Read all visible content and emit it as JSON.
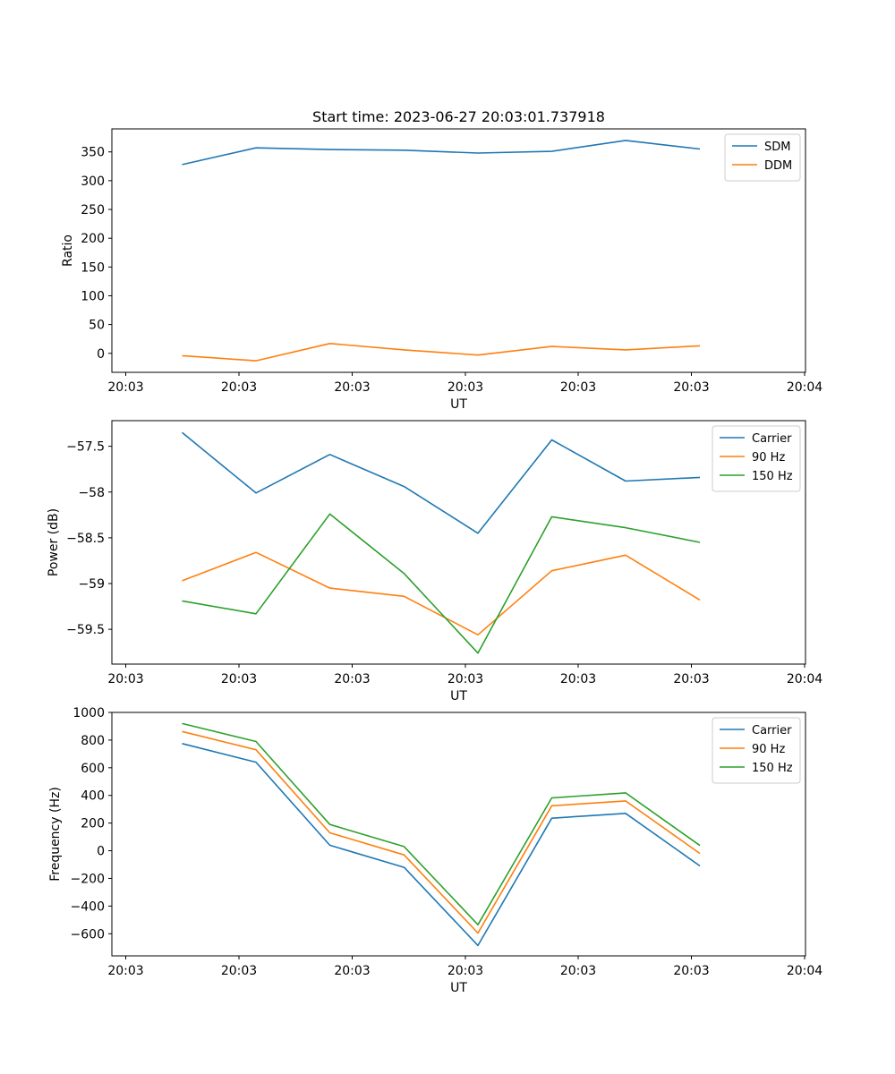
{
  "chart_data": [
    {
      "type": "line",
      "title": "Start time: 2023-06-27 20:03:01.737918",
      "xlabel": "UT",
      "ylabel": "Ratio",
      "x_tick_labels": [
        "20:03",
        "20:03",
        "20:03",
        "20:03",
        "20:03",
        "20:03",
        "20:04"
      ],
      "ylim": [
        -33,
        390
      ],
      "y_ticks": [
        0,
        50,
        100,
        150,
        200,
        250,
        300,
        350
      ],
      "legend": "top-right",
      "grid": false,
      "series": [
        {
          "name": "SDM",
          "color": "#1f77b4",
          "values": [
            328,
            357,
            354,
            353,
            348,
            351,
            370,
            355
          ]
        },
        {
          "name": "DDM",
          "color": "#ff7f0e",
          "values": [
            -4,
            -13,
            17,
            6,
            -3,
            12,
            6,
            13
          ]
        }
      ]
    },
    {
      "type": "line",
      "title": "",
      "xlabel": "UT",
      "ylabel": "Power (dB)",
      "x_tick_labels": [
        "20:03",
        "20:03",
        "20:03",
        "20:03",
        "20:03",
        "20:03",
        "20:04"
      ],
      "ylim": [
        -59.88,
        -57.22
      ],
      "y_ticks": [
        -59.5,
        -59.0,
        -58.5,
        -58.0,
        -57.5
      ],
      "legend": "top-right",
      "grid": false,
      "series": [
        {
          "name": "Carrier",
          "color": "#1f77b4",
          "values": [
            -57.35,
            -58.01,
            -57.59,
            -57.94,
            -58.45,
            -57.43,
            -57.88,
            -57.84
          ]
        },
        {
          "name": "90 Hz",
          "color": "#ff7f0e",
          "values": [
            -58.97,
            -58.66,
            -59.05,
            -59.14,
            -59.56,
            -58.86,
            -58.69,
            -59.18
          ]
        },
        {
          "name": "150 Hz",
          "color": "#2ca02c",
          "values": [
            -59.19,
            -59.33,
            -58.24,
            -58.89,
            -59.76,
            -58.27,
            -58.39,
            -58.55
          ]
        }
      ]
    },
    {
      "type": "line",
      "title": "",
      "xlabel": "UT",
      "ylabel": "Frequency (Hz)",
      "x_tick_labels": [
        "20:03",
        "20:03",
        "20:03",
        "20:03",
        "20:03",
        "20:03",
        "20:04"
      ],
      "ylim": [
        -760,
        1000
      ],
      "y_ticks": [
        -600,
        -400,
        -200,
        0,
        200,
        400,
        600,
        800,
        1000
      ],
      "legend": "top-right",
      "grid": false,
      "series": [
        {
          "name": "Carrier",
          "color": "#1f77b4",
          "values": [
            775,
            640,
            40,
            -120,
            -685,
            235,
            270,
            -110
          ]
        },
        {
          "name": "90 Hz",
          "color": "#ff7f0e",
          "values": [
            862,
            730,
            130,
            -30,
            -595,
            325,
            360,
            -20
          ]
        },
        {
          "name": "150 Hz",
          "color": "#2ca02c",
          "values": [
            920,
            790,
            190,
            30,
            -535,
            382,
            418,
            38
          ]
        }
      ]
    }
  ]
}
